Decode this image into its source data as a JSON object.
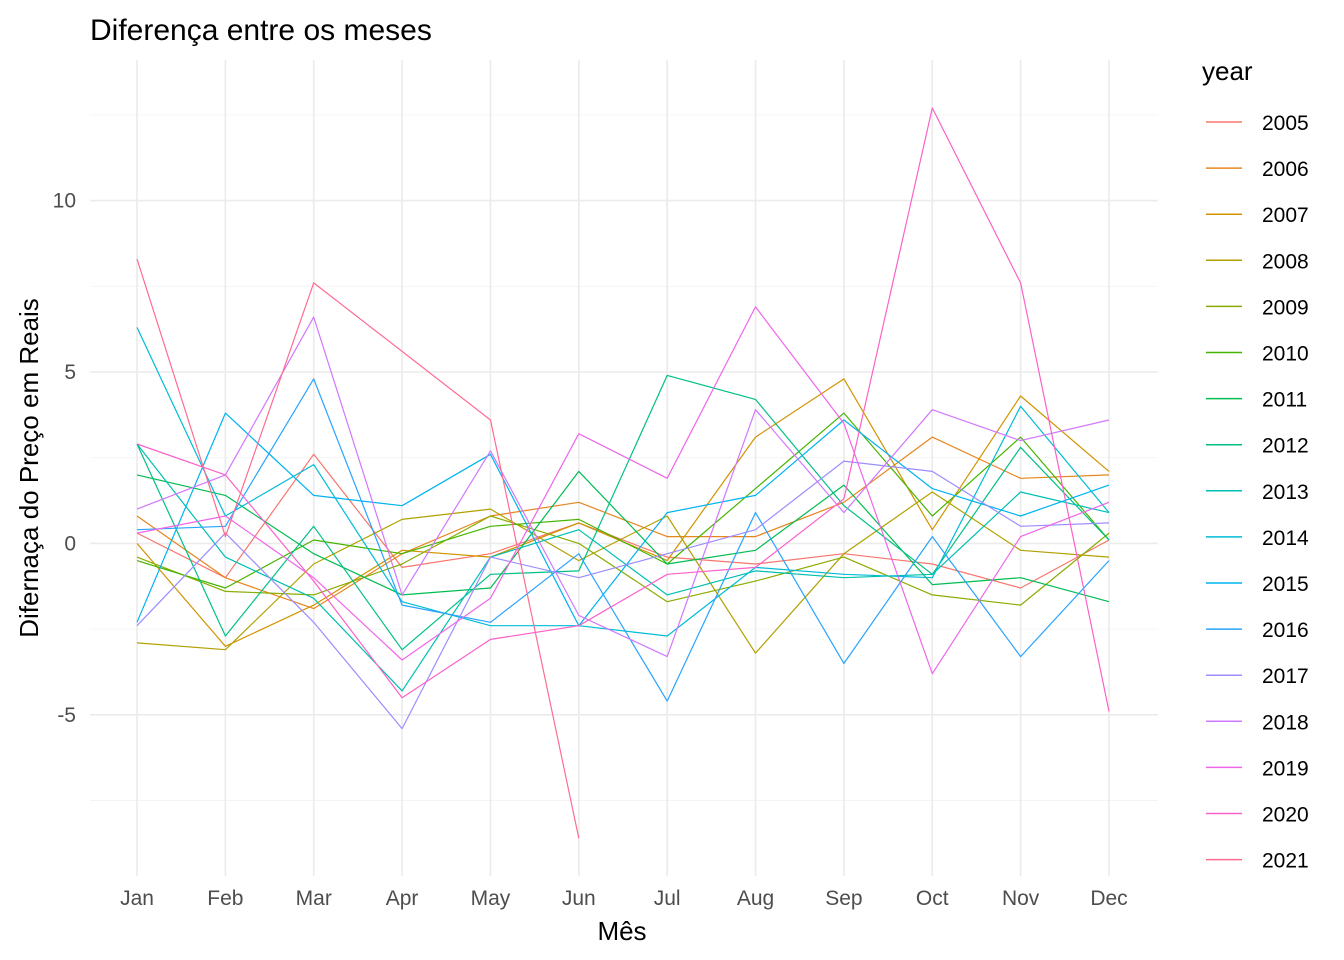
{
  "chart_data": {
    "type": "line",
    "title": "Diferença entre os meses",
    "xlabel": "Mês",
    "ylabel": "Difernaça do Preço em Reais",
    "categories": [
      "Jan",
      "Feb",
      "Mar",
      "Apr",
      "May",
      "Jun",
      "Jul",
      "Aug",
      "Sep",
      "Oct",
      "Nov",
      "Dec"
    ],
    "ylim": [
      -9.7,
      14.1
    ],
    "yticks": [
      -5,
      0,
      5,
      10
    ],
    "grid": true,
    "legend": {
      "title": "year",
      "position": "right"
    },
    "series": [
      {
        "name": "2005",
        "color": "#F8766D",
        "values": [
          0.3,
          -1.0,
          2.6,
          -0.7,
          -0.3,
          0.6,
          -0.4,
          -0.6,
          -0.3,
          -0.6,
          -1.3,
          0.1
        ]
      },
      {
        "name": "2006",
        "color": "#E7851E",
        "values": [
          0.8,
          -1.0,
          -1.9,
          -0.3,
          0.8,
          1.2,
          0.2,
          0.2,
          1.2,
          3.1,
          1.9,
          2.0
        ]
      },
      {
        "name": "2007",
        "color": "#D09400",
        "values": [
          0.0,
          -3.0,
          -1.8,
          -0.2,
          -0.4,
          0.6,
          -0.5,
          3.1,
          4.8,
          0.4,
          4.3,
          2.1
        ]
      },
      {
        "name": "2008",
        "color": "#B2A100",
        "values": [
          -2.9,
          -3.1,
          -0.6,
          0.7,
          1.0,
          -0.5,
          0.8,
          -3.2,
          -0.3,
          1.5,
          -0.2,
          -0.4
        ]
      },
      {
        "name": "2009",
        "color": "#89AC00",
        "values": [
          -0.4,
          -1.4,
          -1.5,
          -0.6,
          0.8,
          0.0,
          -1.7,
          -1.1,
          -0.4,
          -1.5,
          -1.8,
          0.3
        ]
      },
      {
        "name": "2010",
        "color": "#45B500",
        "values": [
          -0.5,
          -1.3,
          0.1,
          -0.3,
          0.5,
          0.7,
          -0.6,
          1.6,
          3.8,
          0.8,
          3.1,
          0.1
        ]
      },
      {
        "name": "2011",
        "color": "#00BC51",
        "values": [
          2.0,
          1.4,
          -0.3,
          -1.5,
          -1.3,
          2.1,
          -0.6,
          -0.2,
          1.7,
          -1.2,
          -1.0,
          -1.7
        ]
      },
      {
        "name": "2012",
        "color": "#00C087",
        "values": [
          2.9,
          -2.7,
          0.5,
          -3.1,
          -0.9,
          -0.8,
          4.9,
          4.2,
          1.1,
          -0.9,
          2.8,
          0.1
        ]
      },
      {
        "name": "2013",
        "color": "#00C0B2",
        "values": [
          2.9,
          -0.4,
          -1.6,
          -4.3,
          -0.4,
          0.4,
          -1.5,
          -0.8,
          -1.0,
          -0.9,
          1.5,
          0.9
        ]
      },
      {
        "name": "2014",
        "color": "#00BCD6",
        "values": [
          6.3,
          0.8,
          2.3,
          -1.7,
          -2.4,
          -2.4,
          -2.7,
          -0.7,
          -0.9,
          -1.0,
          4.0,
          0.9
        ]
      },
      {
        "name": "2015",
        "color": "#00B3F2",
        "values": [
          -2.3,
          3.8,
          1.4,
          1.1,
          2.6,
          -2.4,
          0.9,
          1.4,
          3.6,
          1.6,
          0.8,
          1.7
        ]
      },
      {
        "name": "2016",
        "color": "#29A3FF",
        "values": [
          0.4,
          0.5,
          4.8,
          -1.8,
          -2.3,
          -0.3,
          -4.6,
          0.9,
          -3.5,
          0.2,
          -3.3,
          -0.5
        ]
      },
      {
        "name": "2017",
        "color": "#9C8DFF",
        "values": [
          -2.4,
          0.3,
          -2.3,
          -5.4,
          -0.4,
          -1.0,
          -0.3,
          0.4,
          2.4,
          2.1,
          0.5,
          0.6
        ]
      },
      {
        "name": "2018",
        "color": "#D277FF",
        "values": [
          1.0,
          2.0,
          6.6,
          -1.5,
          2.7,
          -2.1,
          -3.3,
          3.9,
          0.9,
          3.9,
          3.0,
          3.6
        ]
      },
      {
        "name": "2019",
        "color": "#F066EA",
        "values": [
          0.3,
          0.8,
          -1.0,
          -3.4,
          -1.6,
          3.2,
          1.9,
          6.9,
          3.5,
          -3.8,
          0.2,
          1.2
        ]
      },
      {
        "name": "2020",
        "color": "#FC61C9",
        "values": [
          2.9,
          2.0,
          -1.1,
          -4.5,
          -2.8,
          -2.4,
          -0.9,
          -0.7,
          1.3,
          12.7,
          7.6,
          -4.9
        ]
      },
      {
        "name": "2021",
        "color": "#FF6C91",
        "values": [
          8.3,
          0.2,
          7.6,
          5.6,
          3.6,
          -8.6,
          null,
          null,
          null,
          null,
          null,
          null
        ]
      }
    ]
  }
}
